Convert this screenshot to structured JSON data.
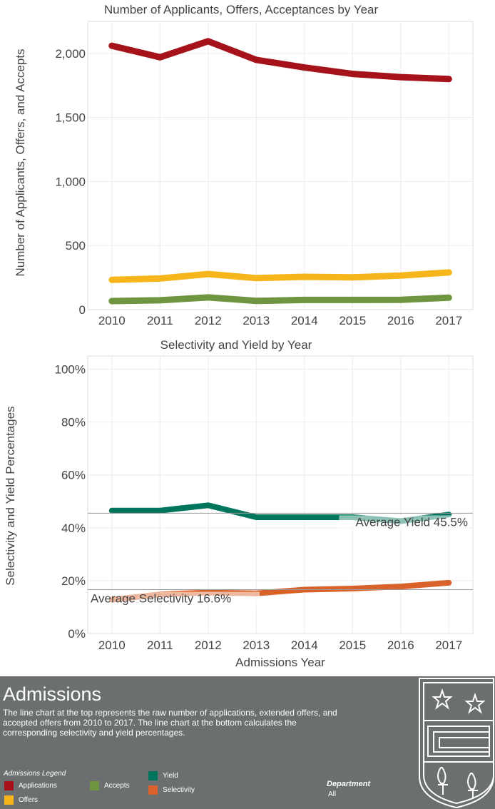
{
  "chart_data": [
    {
      "type": "line",
      "title": "Number of Applicants, Offers, Acceptances by Year",
      "xlabel": "",
      "ylabel": "Number of Applicants, Offers, and Accepts",
      "x": [
        2010,
        2011,
        2012,
        2013,
        2014,
        2015,
        2016,
        2017
      ],
      "ylim": [
        0,
        2250
      ],
      "yticks": [
        0,
        500,
        1000,
        1500,
        2000
      ],
      "ytick_labels": [
        "0",
        "500",
        "1,000",
        "1,500",
        "2,000"
      ],
      "grid": true,
      "series": [
        {
          "name": "Applications",
          "color": "#a6121a",
          "values": [
            2060,
            1970,
            2095,
            1950,
            1890,
            1840,
            1815,
            1800
          ]
        },
        {
          "name": "Offers",
          "color": "#f5b51b",
          "values": [
            232,
            243,
            278,
            246,
            256,
            252,
            266,
            290
          ]
        },
        {
          "name": "Accepts",
          "color": "#6f9540",
          "values": [
            67,
            73,
            95,
            68,
            76,
            76,
            77,
            93
          ]
        }
      ]
    },
    {
      "type": "line",
      "title": "Selectivity and Yield by Year",
      "xlabel": "Admissions Year",
      "ylabel": "Selectivity and Yield Percentages",
      "x": [
        2010,
        2011,
        2012,
        2013,
        2014,
        2015,
        2016,
        2017
      ],
      "ylim": [
        0,
        1.05
      ],
      "yticks": [
        0,
        0.2,
        0.4,
        0.6,
        0.8,
        1.0
      ],
      "ytick_labels": [
        "0%",
        "20%",
        "40%",
        "60%",
        "80%",
        "100%"
      ],
      "grid": true,
      "series": [
        {
          "name": "Yield",
          "color": "#00755e",
          "values": [
            0.465,
            0.465,
            0.485,
            0.44,
            0.44,
            0.44,
            0.425,
            0.45
          ]
        },
        {
          "name": "Selectivity",
          "color": "#d9622b",
          "values": [
            0.128,
            0.148,
            0.155,
            0.152,
            0.166,
            0.17,
            0.178,
            0.192
          ]
        }
      ],
      "reference_lines": [
        {
          "label": "Average Yield 45.5%",
          "value": 0.455
        },
        {
          "label": "Average Selectivity 16.6%",
          "value": 0.166
        }
      ]
    }
  ],
  "panel": {
    "title": "Admissions",
    "description": "The line chart at the top represents the raw number of applications, extended offers, and accepted offers from 2010 to 2017. The line chart at the bottom calculates the corresponding selectivity and yield percentages.",
    "legend_title": "Admissions Legend",
    "legend": [
      {
        "label": "Applications",
        "color": "#a6121a"
      },
      {
        "label": "Offers",
        "color": "#f5b51b"
      },
      {
        "label": "Accepts",
        "color": "#6f9540"
      },
      {
        "label": "Yield",
        "color": "#00755e"
      },
      {
        "label": "Selectivity",
        "color": "#d9622b"
      }
    ],
    "department_title": "Department",
    "department_value": "All"
  },
  "colors": {
    "panel_background": "#6b6f6f",
    "axis_text": "#444444",
    "gridline": "#ececec"
  }
}
